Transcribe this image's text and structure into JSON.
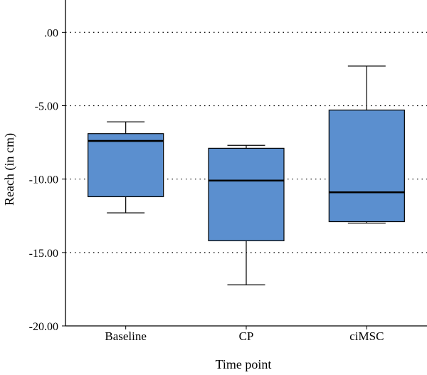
{
  "chart_data": {
    "type": "box",
    "xlabel": "Time point",
    "ylabel": "Reach (in cm)",
    "ylim": [
      -20,
      2.2
    ],
    "yticks": [
      0,
      -5,
      -10,
      -15,
      -20
    ],
    "ytick_labels": [
      ".00",
      "-5.00",
      "-10.00",
      "-15.00",
      "-20.00"
    ],
    "grid": "horizontal dotted",
    "legend": "none",
    "categories": [
      "Baseline",
      "CP",
      "ciMSC"
    ],
    "boxes": [
      {
        "category": "Baseline",
        "whisker_low": -12.3,
        "q1": -11.2,
        "median": -7.4,
        "q3": -6.9,
        "whisker_high": -6.1
      },
      {
        "category": "CP",
        "whisker_low": -17.2,
        "q1": -14.2,
        "median": -10.1,
        "q3": -7.9,
        "whisker_high": -7.7
      },
      {
        "category": "ciMSC",
        "whisker_low": -13.0,
        "q1": -12.9,
        "median": -10.9,
        "q3": -5.3,
        "whisker_high": -2.3
      }
    ],
    "colors": {
      "box_fill": "#5b8fcf",
      "stroke": "#000000",
      "grid": "#000000"
    }
  }
}
